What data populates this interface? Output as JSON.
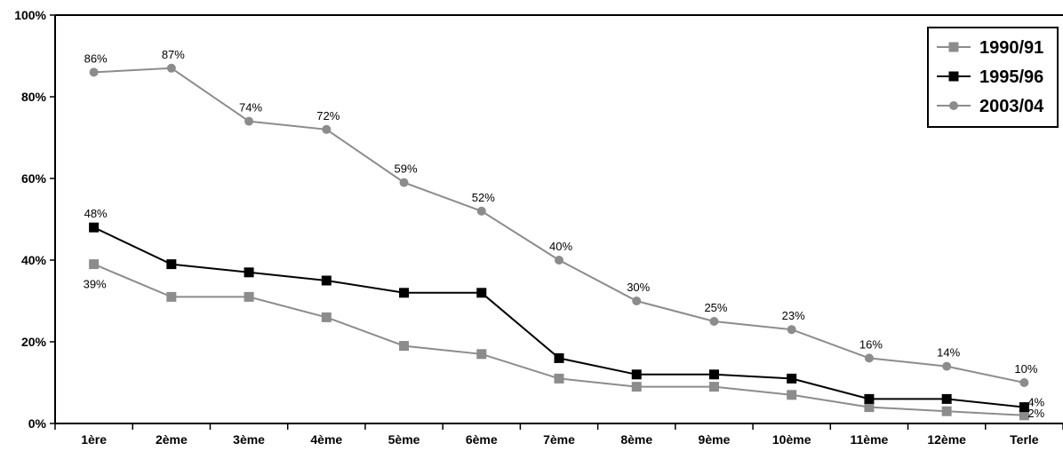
{
  "chart_data": {
    "type": "line",
    "title": "",
    "xlabel": "",
    "ylabel": "",
    "ylim": [
      0,
      100
    ],
    "yticks": [
      "0%",
      "20%",
      "40%",
      "60%",
      "80%",
      "100%"
    ],
    "grid": false,
    "legend_position": "top-right",
    "categories": [
      "1ère",
      "2ème",
      "3ème",
      "4ème",
      "5ème",
      "6ème",
      "7ème",
      "8ème",
      "9ème",
      "10ème",
      "11ème",
      "12ème",
      "Terle"
    ],
    "series": [
      {
        "name": "1990/91",
        "marker": "square",
        "color": "#8c8c8c",
        "values": [
          39,
          31,
          31,
          26,
          19,
          17,
          11,
          9,
          9,
          7,
          4,
          3,
          2
        ],
        "labels": [
          "39%",
          "",
          "",
          "",
          "",
          "",
          "",
          "",
          "",
          "",
          "",
          "",
          "2%"
        ]
      },
      {
        "name": "1995/96",
        "marker": "square",
        "color": "#000000",
        "values": [
          48,
          39,
          37,
          35,
          32,
          32,
          16,
          12,
          12,
          11,
          6,
          6,
          4
        ],
        "labels": [
          "48%",
          "",
          "",
          "",
          "",
          "",
          "",
          "",
          "",
          "",
          "",
          "",
          "4%"
        ]
      },
      {
        "name": "2003/04",
        "marker": "circle",
        "color": "#8c8c8c",
        "values": [
          86,
          87,
          74,
          72,
          59,
          52,
          40,
          30,
          25,
          23,
          16,
          14,
          10
        ],
        "labels": [
          "86%",
          "87%",
          "74%",
          "72%",
          "59%",
          "52%",
          "40%",
          "30%",
          "25%",
          "23%",
          "16%",
          "14%",
          "10%"
        ]
      }
    ]
  }
}
